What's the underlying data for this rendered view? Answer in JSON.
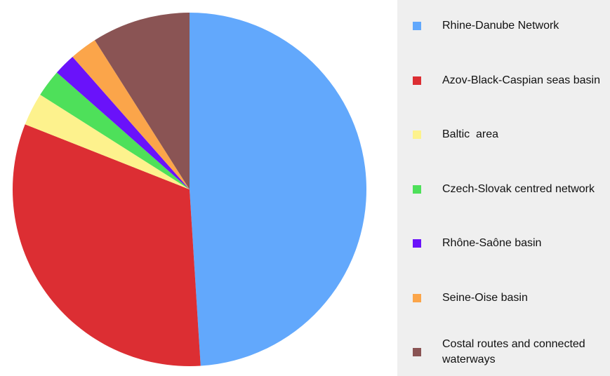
{
  "chart_data": {
    "type": "pie",
    "categories": [
      "Rhine-Danube Network",
      "Azov-Black-Caspian seas basin",
      "Baltic  area",
      "Czech-Slovak centred network",
      "Rhône-Saône basin",
      "Seine-Oise basin",
      "Costal routes and connected waterways"
    ],
    "values": [
      49,
      32,
      3,
      2.5,
      2,
      2.5,
      9
    ],
    "colors": [
      "#62a8fc",
      "#dc2e33",
      "#fdf28d",
      "#4ee05a",
      "#6a12fa",
      "#fba54a",
      "#8a5454"
    ],
    "start_angle": 0,
    "direction": "clockwise",
    "legend": "right"
  }
}
